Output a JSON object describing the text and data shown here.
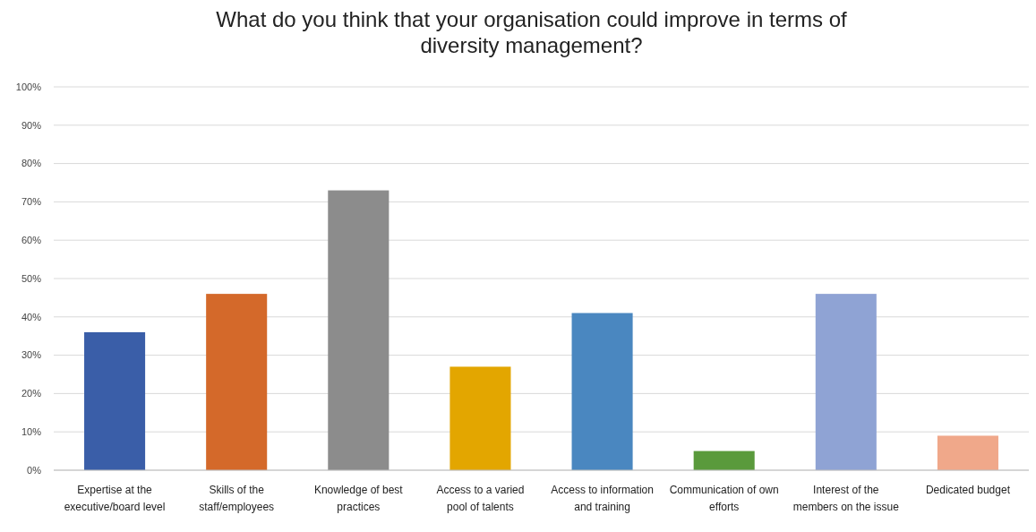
{
  "chart_data": {
    "type": "bar",
    "title": "What do you think that your organisation could improve in terms of diversity management?",
    "categories": [
      "Expertise at the executive/board level",
      "Skills of the staff/employees",
      "Knowledge of best practices",
      "Access to a varied pool of talents",
      "Access to information and training",
      "Communication of own efforts",
      "Interest of the members on the issue",
      "Dedicated budget"
    ],
    "values": [
      36,
      46,
      73,
      27,
      41,
      5,
      46,
      9
    ],
    "colors": [
      "#3a5ea8",
      "#d4692a",
      "#8c8c8c",
      "#e3a600",
      "#4a87c0",
      "#5a9a3c",
      "#8fa3d4",
      "#f0a88a"
    ],
    "ylim": [
      0,
      100
    ],
    "yticks": [
      {
        "value": 0,
        "label": "0%"
      },
      {
        "value": 10,
        "label": "10%"
      },
      {
        "value": 20,
        "label": "20%"
      },
      {
        "value": 30,
        "label": "30%"
      },
      {
        "value": 40,
        "label": "40%"
      },
      {
        "value": 50,
        "label": "50%"
      },
      {
        "value": 60,
        "label": "60%"
      },
      {
        "value": 70,
        "label": "70%"
      },
      {
        "value": 80,
        "label": "80%"
      },
      {
        "value": 90,
        "label": "90%"
      },
      {
        "value": 100,
        "label": "100%"
      }
    ],
    "grid": true
  }
}
